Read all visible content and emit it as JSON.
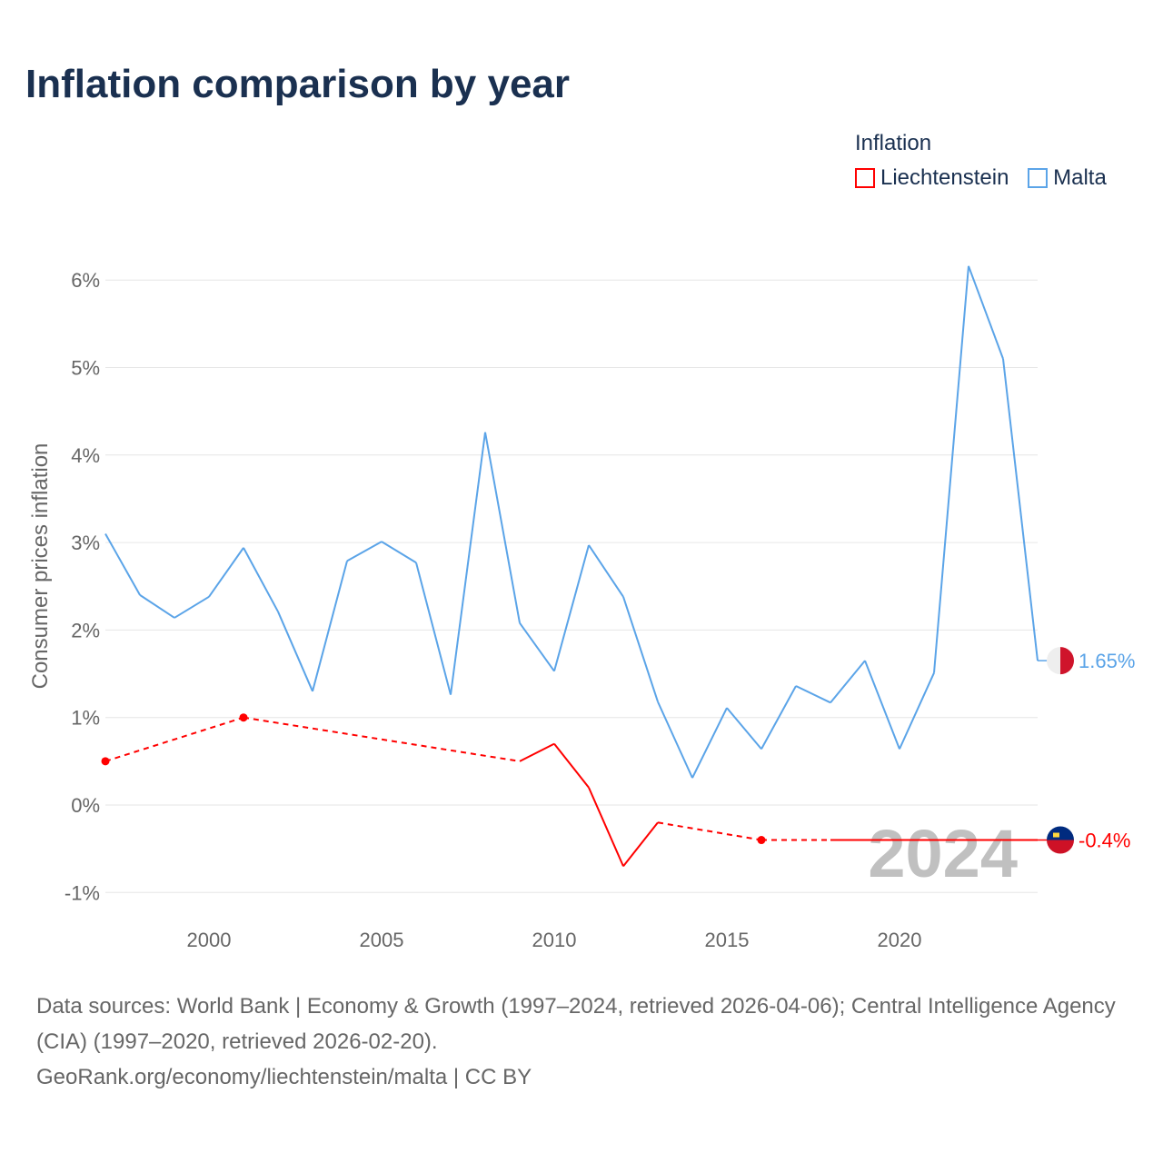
{
  "title": "Inflation comparison by year",
  "legend": {
    "title": "Inflation",
    "items": [
      "Liechtenstein",
      "Malta"
    ]
  },
  "sources": {
    "line1": "Data sources: World Bank | Economy & Growth (1997–2024, retrieved 2026-04-06); Central Intelligence Agency (CIA) (1997–2020, retrieved 2026-02-20).",
    "line2": "GeoRank.org/economy/liechtenstein/malta | CC BY"
  },
  "chart_data": {
    "type": "line",
    "title": "Inflation comparison by year",
    "ylabel": "Consumer prices inflation",
    "xlabel": "",
    "ylim": [
      -1.3,
      6.3
    ],
    "xlim": [
      1997,
      2024
    ],
    "yticks": [
      -1,
      0,
      1,
      2,
      3,
      4,
      5,
      6
    ],
    "ytick_labels": [
      "-1%",
      "0%",
      "1%",
      "2%",
      "3%",
      "4%",
      "5%",
      "6%"
    ],
    "xticks": [
      2000,
      2005,
      2010,
      2015,
      2020
    ],
    "xtick_labels": [
      "2000",
      "2005",
      "2010",
      "2015",
      "2020"
    ],
    "year_watermark": "2024",
    "x": [
      1997,
      1998,
      1999,
      2000,
      2001,
      2002,
      2003,
      2004,
      2005,
      2006,
      2007,
      2008,
      2009,
      2010,
      2011,
      2012,
      2013,
      2014,
      2015,
      2016,
      2017,
      2018,
      2019,
      2020,
      2021,
      2022,
      2023,
      2024
    ],
    "series": [
      {
        "name": "Liechtenstein",
        "color": "#ff0000",
        "end_label": "-0.4%",
        "values": [
          0.5,
          null,
          null,
          null,
          1.0,
          null,
          null,
          null,
          null,
          null,
          null,
          null,
          0.5,
          0.7,
          0.2,
          -0.7,
          -0.2,
          null,
          null,
          -0.4,
          null,
          -0.4,
          -0.4,
          -0.4,
          -0.4,
          -0.4,
          -0.4,
          -0.4
        ]
      },
      {
        "name": "Malta",
        "color": "#5ba4e8",
        "end_label": "1.65%",
        "values": [
          3.1,
          2.4,
          2.14,
          2.38,
          2.94,
          2.21,
          1.3,
          2.79,
          3.01,
          2.77,
          1.26,
          4.26,
          2.08,
          1.53,
          2.97,
          2.38,
          1.18,
          0.31,
          1.11,
          0.64,
          1.36,
          1.17,
          1.65,
          0.64,
          1.51,
          6.16,
          5.1,
          1.65
        ]
      }
    ]
  }
}
